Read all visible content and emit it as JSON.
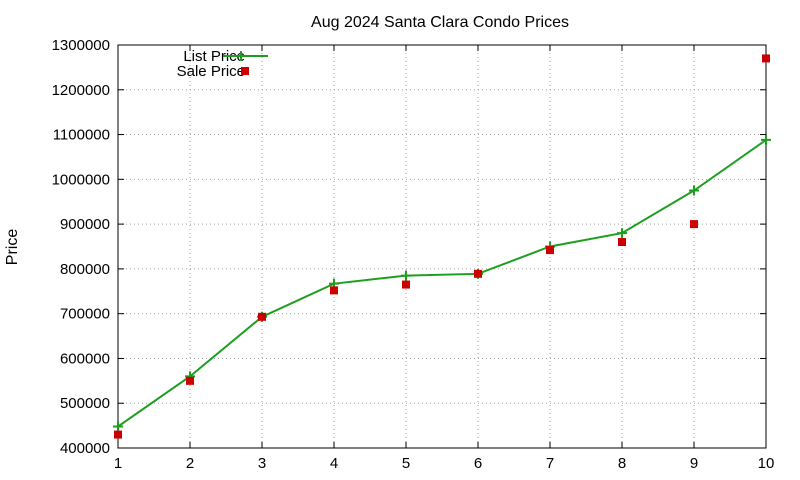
{
  "chart_data": {
    "type": "line",
    "title": "Aug 2024 Santa Clara Condo Prices",
    "xlabel": "",
    "ylabel": "Price",
    "x": [
      1,
      2,
      3,
      4,
      5,
      6,
      7,
      8,
      9,
      10
    ],
    "xlim": [
      1,
      10
    ],
    "ylim": [
      400000,
      1300000
    ],
    "yticks": [
      "400000",
      "500000",
      "600000",
      "700000",
      "800000",
      "900000",
      "1000000",
      "1100000",
      "1200000",
      "1300000"
    ],
    "xticks": [
      "1",
      "2",
      "3",
      "4",
      "5",
      "6",
      "7",
      "8",
      "9",
      "10"
    ],
    "grid": true,
    "legend_position": "top-left",
    "series": [
      {
        "name": "List Price",
        "style": "line-plus",
        "color": "#1e9e1e",
        "values": [
          448000,
          560000,
          693000,
          767000,
          785000,
          789000,
          850000,
          880000,
          975000,
          1088000
        ]
      },
      {
        "name": "Sale Price",
        "style": "square",
        "color": "#cc0000",
        "values": [
          430000,
          550000,
          693000,
          752000,
          765000,
          789000,
          842000,
          860000,
          900000,
          1270000
        ]
      }
    ]
  }
}
